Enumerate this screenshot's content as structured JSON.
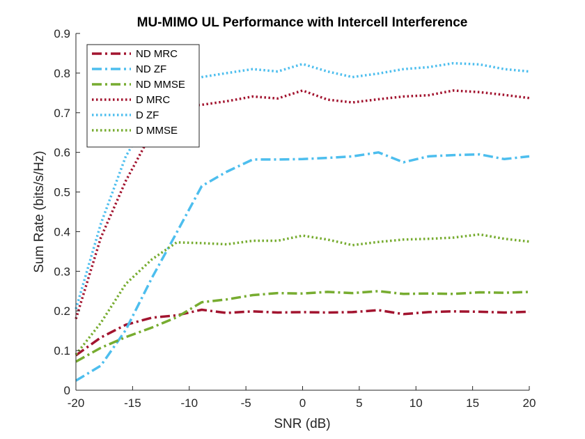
{
  "chart_data": {
    "type": "line",
    "title": "MU-MIMO UL Performance with Intercell Interference",
    "xlabel": "SNR (dB)",
    "ylabel": "Sum Rate (bits/s/Hz)",
    "xlim": [
      -20,
      20
    ],
    "ylim": [
      0,
      0.9
    ],
    "xticks": [
      -20,
      -15,
      -10,
      -5,
      0,
      5,
      10,
      15,
      20
    ],
    "xtick_labels": [
      "-20",
      "-15",
      "-10",
      "-5",
      "0",
      "5",
      "10",
      "15",
      "20"
    ],
    "yticks": [
      0,
      0.1,
      0.2,
      0.3,
      0.4,
      0.5,
      0.6,
      0.7,
      0.8,
      0.9
    ],
    "ytick_labels": [
      "0",
      "0.1",
      "0.2",
      "0.3",
      "0.4",
      "0.5",
      "0.6",
      "0.7",
      "0.8",
      "0.9"
    ],
    "grid": false,
    "legend_position": "top-left",
    "x": [
      -20,
      -17.8,
      -15.6,
      -13.3,
      -11.1,
      -8.9,
      -6.7,
      -4.4,
      -2.2,
      0,
      2.2,
      4.4,
      6.7,
      8.9,
      11.1,
      13.3,
      15.6,
      17.8,
      20
    ],
    "series": [
      {
        "name": "ND MRC",
        "color": "#A2142F",
        "style": "dashdot",
        "values": [
          0.088,
          0.133,
          0.165,
          0.183,
          0.189,
          0.203,
          0.195,
          0.199,
          0.196,
          0.197,
          0.196,
          0.197,
          0.202,
          0.192,
          0.197,
          0.199,
          0.198,
          0.196,
          0.198
        ]
      },
      {
        "name": "ND ZF",
        "color": "#4DBEEE",
        "style": "dashdot",
        "values": [
          0.024,
          0.062,
          0.152,
          0.283,
          0.398,
          0.515,
          0.551,
          0.582,
          0.582,
          0.583,
          0.586,
          0.59,
          0.6,
          0.575,
          0.59,
          0.593,
          0.595,
          0.583,
          0.59
        ]
      },
      {
        "name": "ND MMSE",
        "color": "#77AC30",
        "style": "dashdot",
        "values": [
          0.072,
          0.107,
          0.134,
          0.158,
          0.184,
          0.222,
          0.229,
          0.24,
          0.245,
          0.244,
          0.248,
          0.245,
          0.25,
          0.243,
          0.244,
          0.243,
          0.247,
          0.246,
          0.248
        ]
      },
      {
        "name": "D MRC",
        "color": "#A2142F",
        "style": "dotted",
        "values": [
          0.18,
          0.385,
          0.528,
          0.65,
          0.715,
          0.72,
          0.729,
          0.741,
          0.736,
          0.756,
          0.733,
          0.726,
          0.734,
          0.741,
          0.744,
          0.756,
          0.752,
          0.745,
          0.737
        ]
      },
      {
        "name": "D ZF",
        "color": "#4DBEEE",
        "style": "dotted",
        "values": [
          0.205,
          0.42,
          0.59,
          0.7,
          0.776,
          0.79,
          0.8,
          0.81,
          0.804,
          0.823,
          0.804,
          0.79,
          0.799,
          0.81,
          0.815,
          0.825,
          0.822,
          0.81,
          0.804
        ]
      },
      {
        "name": "D MMSE",
        "color": "#77AC30",
        "style": "dotted",
        "values": [
          0.09,
          0.17,
          0.268,
          0.33,
          0.373,
          0.371,
          0.368,
          0.377,
          0.377,
          0.39,
          0.38,
          0.366,
          0.374,
          0.38,
          0.382,
          0.385,
          0.393,
          0.382,
          0.375
        ]
      }
    ]
  }
}
